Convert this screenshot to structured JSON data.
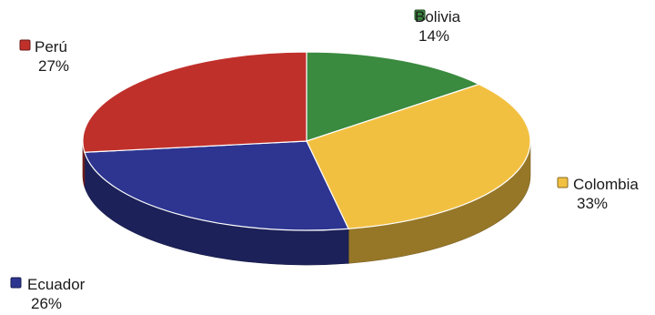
{
  "chart_data": {
    "type": "pie",
    "style": "3d",
    "title": "",
    "legend": "labels-outside",
    "slices": [
      {
        "label": "Bolivia",
        "value": 14,
        "display": "14%",
        "color": "#3a8a3f"
      },
      {
        "label": "Colombia",
        "value": 33,
        "display": "33%",
        "color": "#f2c041"
      },
      {
        "label": "Ecuador",
        "value": 26,
        "display": "26%",
        "color": "#2d3590"
      },
      {
        "label": "Perú",
        "value": 27,
        "display": "27%",
        "color": "#c0302b"
      }
    ]
  }
}
